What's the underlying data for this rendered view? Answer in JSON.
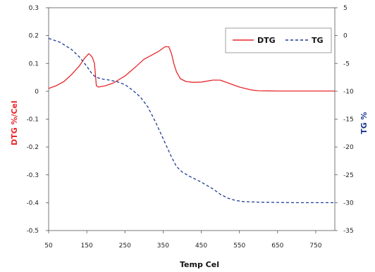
{
  "chart_data": {
    "type": "line",
    "xlabel": "Temp Cel",
    "ylabel_left": "DTG %/Cel",
    "ylabel_right": "TG %",
    "xlim": [
      50,
      800
    ],
    "xticks": [
      50,
      150,
      250,
      350,
      450,
      550,
      650,
      750
    ],
    "ylim_left": [
      -0.5,
      0.3
    ],
    "yticks_left": [
      -0.5,
      -0.4,
      -0.3,
      -0.2,
      -0.1,
      0,
      0.1,
      0.2,
      0.3
    ],
    "ylim_right": [
      -35,
      5
    ],
    "yticks_right": [
      -35,
      -30,
      -25,
      -20,
      -15,
      -10,
      -5,
      0,
      5
    ],
    "legend_position": "top-right",
    "grid": false,
    "series": [
      {
        "name": "DTG",
        "axis": "left",
        "color": "#e8262a",
        "style": "solid",
        "x": [
          50,
          70,
          90,
          110,
          130,
          145,
          155,
          160,
          165,
          170,
          175,
          180,
          200,
          220,
          250,
          280,
          300,
          320,
          340,
          355,
          365,
          372,
          378,
          385,
          395,
          410,
          430,
          450,
          480,
          500,
          520,
          550,
          580,
          600,
          650,
          700,
          750,
          800
        ],
        "y": [
          0.01,
          0.02,
          0.035,
          0.06,
          0.09,
          0.12,
          0.135,
          0.13,
          0.12,
          0.1,
          0.02,
          0.015,
          0.02,
          0.03,
          0.055,
          0.09,
          0.115,
          0.13,
          0.145,
          0.16,
          0.16,
          0.135,
          0.1,
          0.07,
          0.045,
          0.035,
          0.032,
          0.033,
          0.04,
          0.04,
          0.03,
          0.015,
          0.005,
          0.002,
          0.001,
          0.001,
          0.001,
          0.001
        ]
      },
      {
        "name": "TG",
        "axis": "right",
        "color": "#1f3a93",
        "style": "dashed",
        "x": [
          50,
          80,
          110,
          130,
          150,
          165,
          175,
          190,
          210,
          230,
          250,
          270,
          290,
          310,
          330,
          350,
          370,
          385,
          400,
          420,
          450,
          480,
          500,
          520,
          540,
          560,
          600,
          650,
          700,
          750,
          800
        ],
        "y": [
          -0.5,
          -1.2,
          -2.5,
          -3.8,
          -5.5,
          -7.0,
          -7.5,
          -7.8,
          -8.0,
          -8.3,
          -8.8,
          -9.8,
          -11,
          -12.8,
          -15.5,
          -18.5,
          -21.5,
          -23.5,
          -24.5,
          -25.3,
          -26.3,
          -27.5,
          -28.5,
          -29.2,
          -29.6,
          -29.8,
          -29.9,
          -29.95,
          -30,
          -30,
          -30
        ]
      }
    ]
  }
}
